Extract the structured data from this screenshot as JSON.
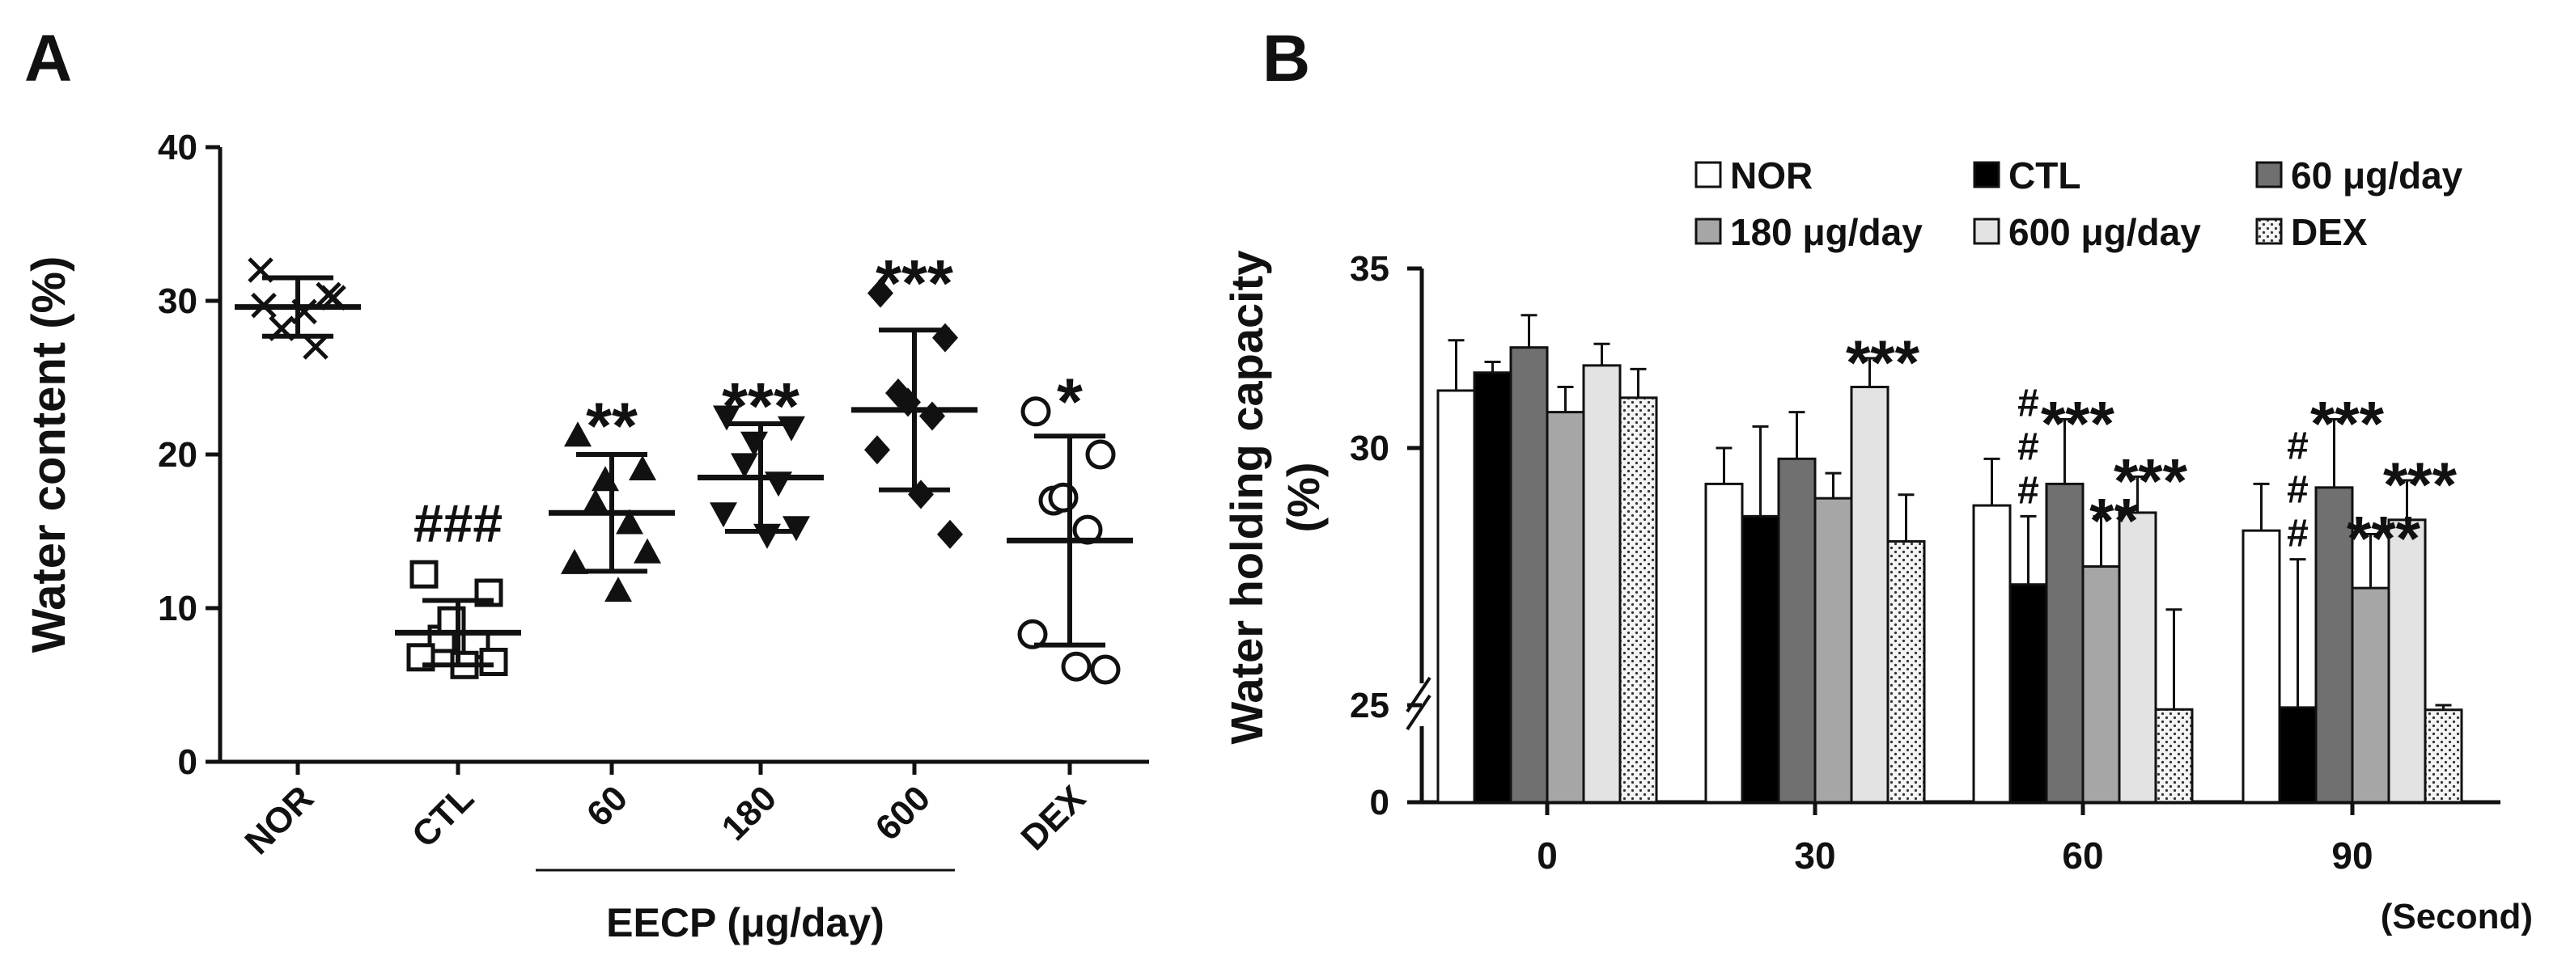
{
  "panels": {
    "a": "A",
    "b": "B"
  },
  "chart_data": [
    {
      "type": "scatter",
      "ylabel": "Water content (%)",
      "ylim": [
        0,
        40
      ],
      "yticks": [
        0,
        10,
        20,
        30,
        40
      ],
      "categories": [
        "NOR",
        "CTL",
        "60",
        "180",
        "600",
        "DEX"
      ],
      "group_label": "EECP (μg/day)",
      "groups": [
        {
          "name": "NOR",
          "marker": "x",
          "mean": 29.6,
          "sd": 1.9,
          "annotation": "",
          "points": [
            29.7,
            30.4,
            28.2,
            27.0,
            32.0,
            29.3,
            30.2
          ]
        },
        {
          "name": "CTL",
          "marker": "square-open",
          "mean": 8.4,
          "sd": 2.1,
          "annotation": "###",
          "points": [
            12.2,
            11.0,
            8.0,
            7.6,
            6.8,
            6.3,
            6.5,
            9.2
          ]
        },
        {
          "name": "60",
          "marker": "triangle-up",
          "mean": 16.2,
          "sd": 3.8,
          "annotation": "**",
          "points": [
            21.2,
            19.0,
            16.8,
            15.5,
            12.9,
            11.1,
            13.6,
            18.3
          ]
        },
        {
          "name": "180",
          "marker": "triangle-down",
          "mean": 18.5,
          "sd": 3.5,
          "annotation": "***",
          "points": [
            22.5,
            21.8,
            19.4,
            18.2,
            16.2,
            14.8,
            15.3,
            20.8
          ]
        },
        {
          "name": "600",
          "marker": "diamond",
          "mean": 22.9,
          "sd": 5.2,
          "annotation": "***",
          "points": [
            30.5,
            27.6,
            24.0,
            22.5,
            20.3,
            17.4,
            14.8,
            23.4
          ]
        },
        {
          "name": "DEX",
          "marker": "circle-open",
          "mean": 14.4,
          "sd": 6.8,
          "annotation": "*",
          "points": [
            22.8,
            20.0,
            17.0,
            15.1,
            8.3,
            6.2,
            6.0,
            17.2
          ]
        }
      ]
    },
    {
      "type": "bar",
      "ylabel": "Water holding capacity (%)",
      "xlabel": "(Second)",
      "ylim": [
        0,
        35
      ],
      "axis_break": true,
      "yticks": [
        0,
        25,
        30,
        35
      ],
      "categories": [
        "0",
        "30",
        "60",
        "90"
      ],
      "legend_position": "top-right",
      "series": [
        {
          "name": "NOR",
          "fill": "#ffffff",
          "pattern": "none",
          "values": [
            31.6,
            29.0,
            28.4,
            27.7
          ],
          "errors": [
            1.4,
            1.0,
            1.3,
            1.3
          ]
        },
        {
          "name": "CTL",
          "fill": "#000000",
          "pattern": "none",
          "values": [
            32.1,
            28.1,
            26.2,
            24.4
          ],
          "errors": [
            0.3,
            2.5,
            1.9,
            2.5
          ]
        },
        {
          "name": "60 μg/day",
          "fill": "#707070",
          "pattern": "none",
          "values": [
            32.8,
            29.7,
            29.0,
            28.9
          ],
          "errors": [
            0.9,
            1.3,
            1.8,
            1.9
          ]
        },
        {
          "name": "180 μg/day",
          "fill": "#a6a6a6",
          "pattern": "none",
          "values": [
            31.0,
            28.6,
            26.7,
            26.1
          ],
          "errors": [
            0.7,
            0.7,
            1.4,
            1.5
          ]
        },
        {
          "name": "600 μg/day",
          "fill": "#e3e3e3",
          "pattern": "none",
          "values": [
            32.3,
            31.7,
            28.2,
            28.0
          ],
          "errors": [
            0.6,
            0.8,
            1.0,
            1.1
          ]
        },
        {
          "name": "DEX",
          "fill": "#f2f2f2",
          "pattern": "dots",
          "values": [
            31.4,
            27.4,
            23.9,
            23.8
          ],
          "errors": [
            0.8,
            1.3,
            1.6,
            1.2
          ]
        }
      ],
      "annotations": [
        {
          "category": "30",
          "series": "600 μg/day",
          "text": "***"
        },
        {
          "category": "60",
          "series": "CTL",
          "text": "#\n#\n#"
        },
        {
          "category": "60",
          "series": "60 μg/day",
          "text": "***"
        },
        {
          "category": "60",
          "series": "180 μg/day",
          "text": "**"
        },
        {
          "category": "60",
          "series": "600 μg/day",
          "text": "***"
        },
        {
          "category": "90",
          "series": "CTL",
          "text": "#\n#\n#"
        },
        {
          "category": "90",
          "series": "60 μg/day",
          "text": "***"
        },
        {
          "category": "90",
          "series": "180 μg/day",
          "text": "***"
        },
        {
          "category": "90",
          "series": "600 μg/day",
          "text": "***"
        }
      ]
    }
  ]
}
